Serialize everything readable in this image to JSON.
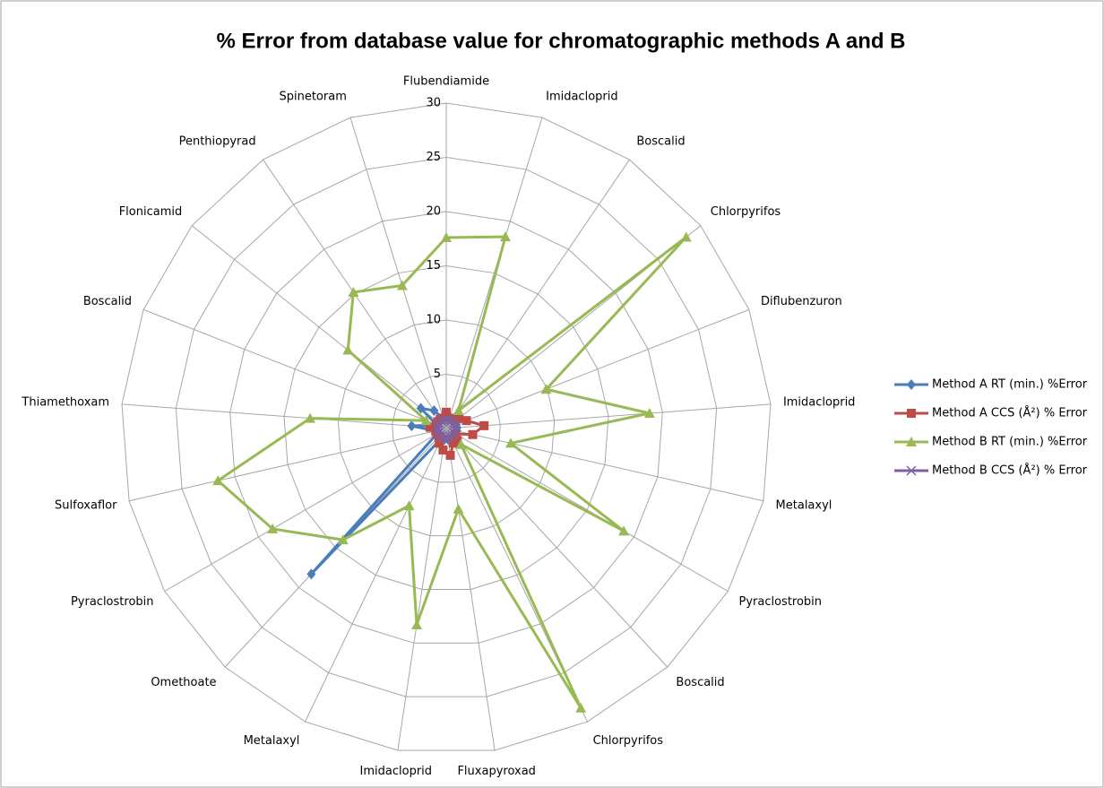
{
  "chart_data": {
    "type": "radar",
    "title": "% Error from database value for chromatographic methods A and B",
    "categories": [
      "Flubendiamide",
      "Imidacloprid",
      "Boscalid",
      "Chlorpyrifos",
      "Diflubenzuron",
      "Imidacloprid",
      "Metalaxyl",
      "Pyraclostrobin",
      "Boscalid",
      "Chlorpyrifos",
      "Fluxapyroxad",
      "Imidacloprid",
      "Metalaxyl",
      "Omethoate",
      "Pyraclostrobin",
      "Sulfoxaflor",
      "Thiamethoxam",
      "Boscalid",
      "Flonicamid",
      "Penthiopyrad",
      "Spinetoram"
    ],
    "series": [
      {
        "name": "Method A RT (min.) %Error",
        "color": "#4a7ebb",
        "marker": "diamond",
        "values": [
          1,
          1,
          1,
          1,
          1,
          1,
          1,
          1,
          1,
          1,
          1,
          1,
          1,
          18.3,
          1,
          1,
          3.2,
          1,
          3,
          2,
          1
        ]
      },
      {
        "name": "Method A CCS (Å²) % Error",
        "color": "#be4b48",
        "marker": "square",
        "values": [
          1.5,
          1,
          1,
          1.5,
          2,
          3.5,
          2.5,
          1,
          1.5,
          1.5,
          2.5,
          2,
          1.5,
          1,
          1,
          1,
          1.5,
          1,
          1,
          1,
          1
        ]
      },
      {
        "name": "Method B RT (min.) %Error",
        "color": "#98b954",
        "marker": "triangle",
        "values": [
          17.6,
          18.5,
          2,
          28.3,
          9.9,
          18.8,
          6.1,
          18.9,
          2,
          28.6,
          7.5,
          18.3,
          7.9,
          14,
          18.5,
          21.6,
          12.6,
          2,
          11.6,
          15.2,
          13.8
        ]
      },
      {
        "name": "Method B CCS (Å²) % Error",
        "color": "#7d60a0",
        "marker": "x",
        "values": [
          0.8,
          0.8,
          0.8,
          0.8,
          0.8,
          0.8,
          0.8,
          0.8,
          0.8,
          0.8,
          0.8,
          0.8,
          0.8,
          0.8,
          0.8,
          0.8,
          0.8,
          0.8,
          0.8,
          0.8,
          0.8
        ]
      }
    ],
    "ylim": [
      0,
      30
    ],
    "yticks": [
      0,
      5,
      10,
      15,
      20,
      25,
      30
    ],
    "grid": true,
    "legend": "right"
  }
}
